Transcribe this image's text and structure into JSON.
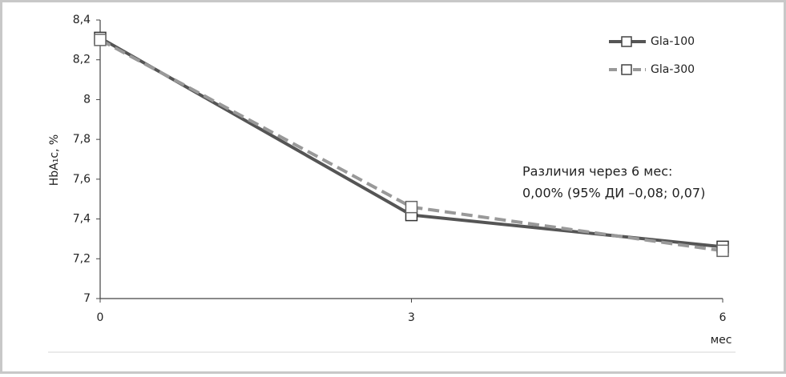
{
  "chart_data": {
    "type": "line",
    "y_label": "HbA₁c, %",
    "x_label": "мес",
    "annotation": [
      "Различия через 6 мес:",
      "0,00% (95% ДИ –0,08; 0,07)"
    ],
    "x": [
      0,
      3,
      6
    ],
    "xlim": [
      0,
      6
    ],
    "xticks": [
      0,
      3,
      6
    ],
    "ylim": [
      7,
      8.4
    ],
    "yticks": [
      7,
      {
        "value": 7.2,
        "label": "7,2"
      },
      {
        "value": 7.4,
        "label": "7,4"
      },
      {
        "value": 7.6,
        "label": "7,6"
      },
      {
        "value": 7.8,
        "label": "7,8"
      },
      8,
      {
        "value": 8.2,
        "label": "8,2"
      },
      {
        "value": 8.4,
        "label": "8,4"
      }
    ],
    "legend": "upper right",
    "series": [
      {
        "name": "Gla-100",
        "color": "#555555",
        "dashed": false,
        "values": [
          8.31,
          7.42,
          7.26
        ]
      },
      {
        "name": "Gla-300",
        "color": "#999999",
        "dashed": true,
        "values": [
          8.3,
          7.46,
          7.24
        ]
      }
    ]
  }
}
